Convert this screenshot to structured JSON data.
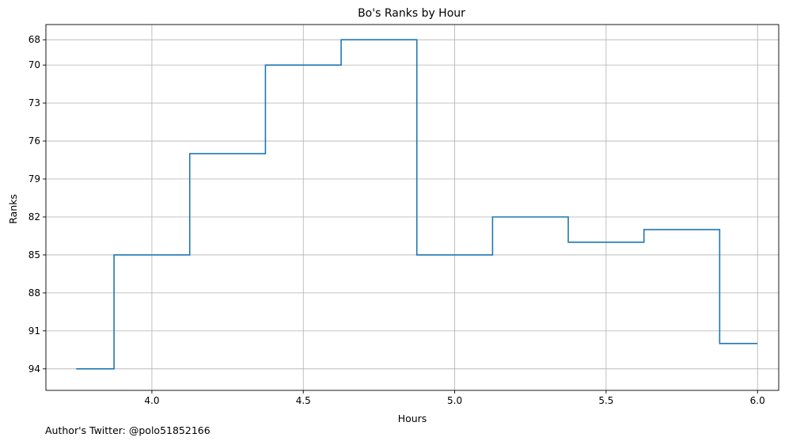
{
  "chart_data": {
    "type": "line",
    "step": "mid",
    "title": "Bo's Ranks by Hour",
    "xlabel": "Hours",
    "ylabel": "Ranks",
    "x": [
      3.75,
      4.0,
      4.25,
      4.5,
      4.75,
      5.0,
      5.25,
      5.5,
      5.75,
      6.0
    ],
    "y": [
      94,
      85,
      77,
      70,
      68,
      85,
      82,
      84,
      83,
      92
    ],
    "xlim": [
      3.65,
      6.07
    ],
    "ylim": [
      95.7,
      66.8
    ],
    "y_inverted": true,
    "xticks": [
      4.0,
      4.5,
      5.0,
      5.5,
      6.0
    ],
    "xtick_labels": [
      "4.0",
      "4.5",
      "5.0",
      "5.5",
      "6.0"
    ],
    "yticks": [
      68,
      70,
      73,
      76,
      79,
      82,
      85,
      88,
      91,
      94
    ],
    "ytick_labels": [
      "68",
      "70",
      "73",
      "76",
      "79",
      "82",
      "85",
      "88",
      "91",
      "94"
    ],
    "grid": true,
    "line_color": "#1f77b4",
    "grid_color": "#b0b0b0"
  },
  "footer": {
    "note": "Author's Twitter: @polo51852166"
  }
}
